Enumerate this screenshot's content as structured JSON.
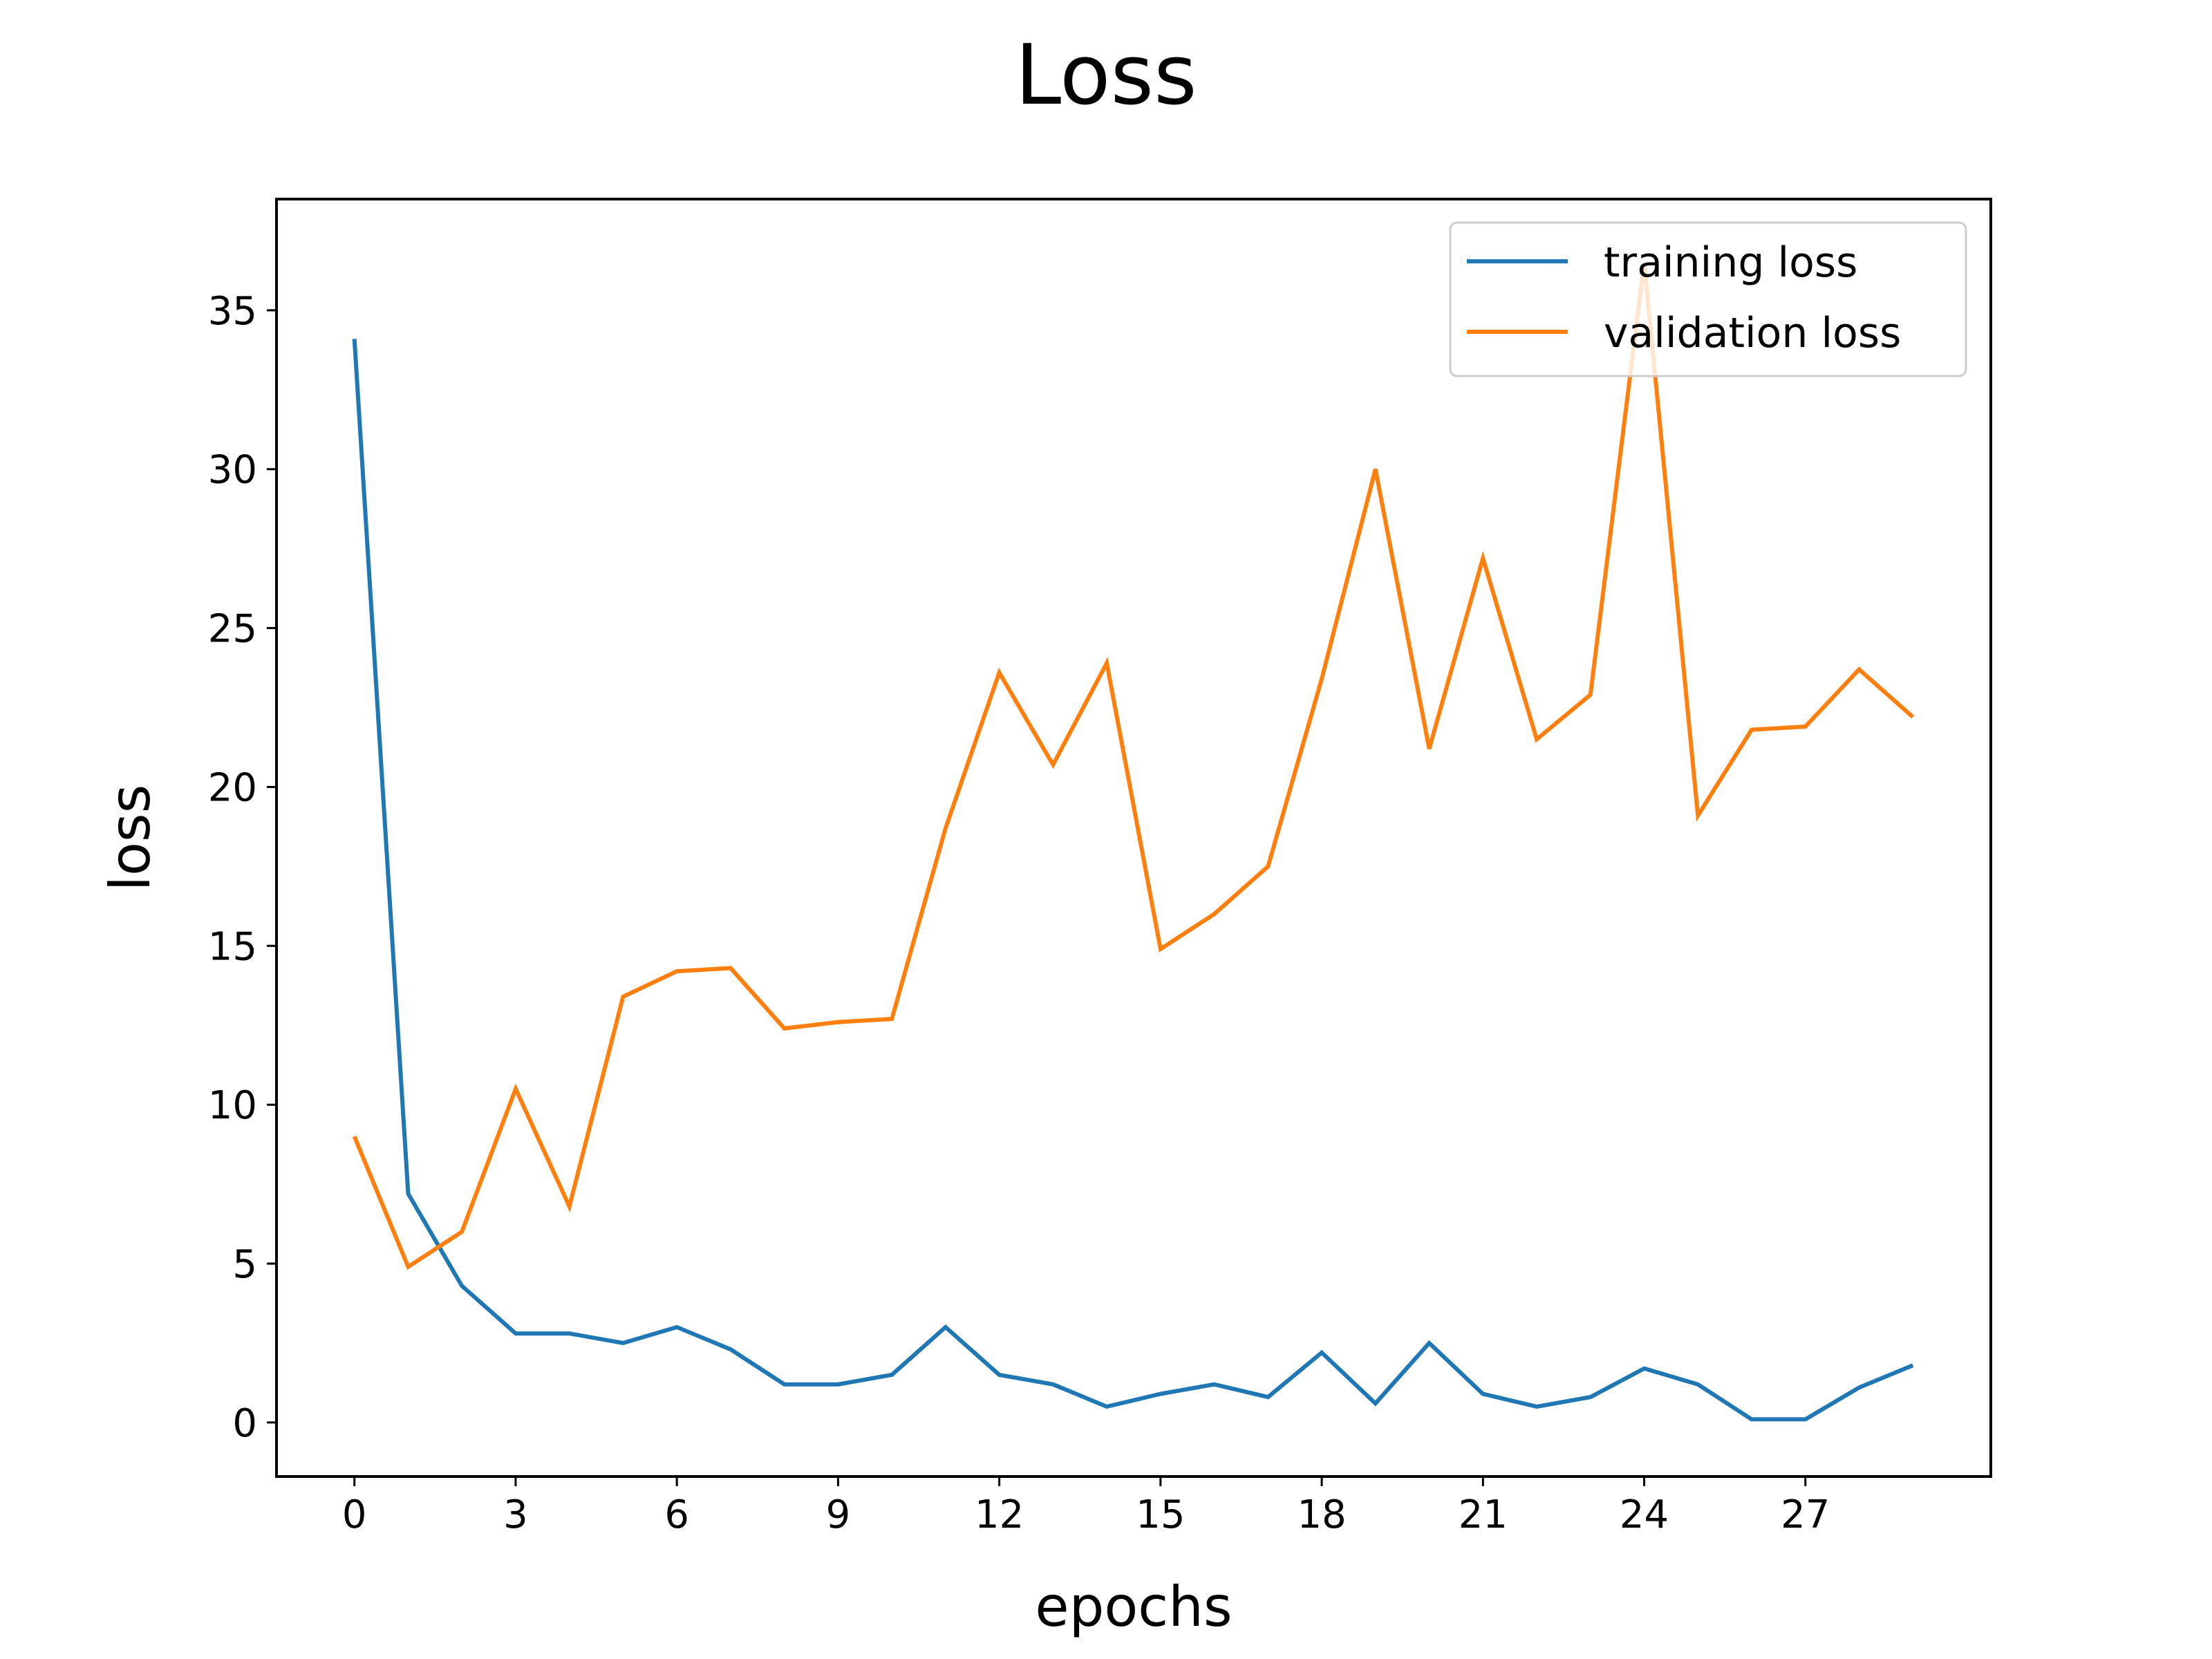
{
  "chart_data": {
    "type": "line",
    "title": "Loss",
    "xlabel": "epochs",
    "ylabel": "loss",
    "xlim": [
      -1.45,
      30.45
    ],
    "ylim": [
      -1.7,
      38.5
    ],
    "xticks": [
      0,
      3,
      6,
      9,
      12,
      15,
      18,
      21,
      24,
      27
    ],
    "yticks": [
      0,
      5,
      10,
      15,
      20,
      25,
      30,
      35
    ],
    "grid": false,
    "legend_position": "top-right",
    "x": [
      0,
      1,
      2,
      3,
      4,
      5,
      6,
      7,
      8,
      9,
      10,
      11,
      12,
      13,
      14,
      15,
      16,
      17,
      18,
      19,
      20,
      21,
      22,
      23,
      24,
      25,
      26,
      27,
      28,
      29
    ],
    "series": [
      {
        "name": "training loss",
        "color": "#1f77b4",
        "values": [
          34.1,
          7.2,
          4.3,
          2.8,
          2.8,
          2.5,
          3.0,
          2.3,
          1.2,
          1.2,
          1.5,
          3.0,
          1.5,
          1.2,
          0.5,
          0.9,
          1.2,
          0.8,
          2.2,
          0.6,
          2.5,
          0.9,
          0.5,
          0.8,
          1.7,
          1.2,
          0.1,
          0.1,
          1.1,
          1.8
        ]
      },
      {
        "name": "validation loss",
        "color": "#ff7f0e",
        "values": [
          9.0,
          4.9,
          6.0,
          10.5,
          6.8,
          13.4,
          14.2,
          14.3,
          12.4,
          12.6,
          12.7,
          18.7,
          23.6,
          20.7,
          23.9,
          14.9,
          16.0,
          17.5,
          23.4,
          30.0,
          21.2,
          27.2,
          21.5,
          22.9,
          36.5,
          19.1,
          21.8,
          21.9,
          23.7,
          22.2
        ]
      }
    ]
  }
}
